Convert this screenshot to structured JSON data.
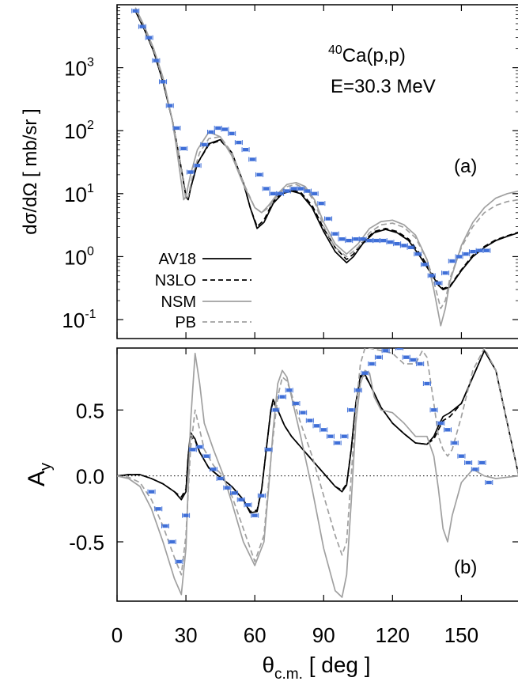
{
  "chart_data": [
    {
      "panel": "(a)",
      "type": "line",
      "yscale": "log",
      "title": "",
      "xlabel": "",
      "ylabel": "dσ/dΩ  [ mb/sr ]",
      "xlim": [
        0,
        175
      ],
      "ylim": [
        0.05,
        10000
      ],
      "yticks": [
        {
          "value": 1000,
          "label": "10",
          "exp": "3"
        },
        {
          "value": 100,
          "label": "10",
          "exp": "2"
        },
        {
          "value": 10,
          "label": "10",
          "exp": "1"
        },
        {
          "value": 1,
          "label": "10",
          "exp": "0"
        },
        {
          "value": 0.1,
          "label": "10",
          "exp": "-1"
        }
      ],
      "annotation": {
        "super": "40",
        "reaction": "Ca(p,p)",
        "energy": "E=30.3 MeV",
        "panel_label": "(a)"
      },
      "legend_placement": "lower-left",
      "series": [
        {
          "name": "AV18",
          "style": "solid",
          "color": "#000000",
          "x": [
            8,
            12,
            16,
            20,
            24,
            27,
            29,
            30,
            31,
            32,
            35,
            40,
            45,
            50,
            55,
            58,
            61,
            64,
            68,
            72,
            76,
            80,
            85,
            90,
            95,
            100,
            103,
            107,
            112,
            117,
            122,
            127,
            132,
            136,
            140,
            142,
            145,
            150,
            155,
            160,
            165,
            170,
            175
          ],
          "y": [
            8000,
            4000,
            1800,
            600,
            150,
            40,
            15,
            9,
            8,
            12,
            30,
            62,
            72,
            45,
            15,
            6,
            2.8,
            3.5,
            7,
            10,
            11,
            10,
            6,
            2.5,
            1.2,
            0.8,
            1.0,
            1.6,
            2.4,
            2.7,
            2.4,
            1.8,
            1.0,
            0.6,
            0.35,
            0.3,
            0.33,
            0.6,
            1.0,
            1.4,
            1.8,
            2.1,
            2.4
          ]
        },
        {
          "name": "N3LO",
          "style": "dashed",
          "color": "#000000",
          "x": [
            8,
            12,
            16,
            20,
            24,
            27,
            29,
            30,
            31,
            32,
            35,
            40,
            45,
            50,
            55,
            58,
            61,
            64,
            68,
            72,
            76,
            80,
            85,
            90,
            95,
            100,
            103,
            107,
            112,
            117,
            122,
            127,
            132,
            136,
            140,
            142,
            145,
            150,
            155,
            160,
            165,
            170,
            175
          ],
          "y": [
            8000,
            4000,
            1800,
            600,
            150,
            40,
            15,
            9,
            8,
            12,
            30,
            60,
            70,
            45,
            15,
            6,
            3.0,
            3.8,
            7.5,
            10.5,
            11.5,
            10.5,
            6.5,
            2.8,
            1.4,
            0.9,
            1.1,
            1.7,
            2.5,
            2.8,
            2.5,
            1.9,
            1.1,
            0.65,
            0.38,
            0.31,
            0.34,
            0.62,
            1.05,
            1.45,
            1.85,
            2.15,
            2.45
          ]
        },
        {
          "name": "NSM",
          "style": "solid",
          "color": "#a0a0a0",
          "x": [
            8,
            12,
            16,
            20,
            24,
            26,
            28,
            29,
            30,
            32,
            35,
            40,
            45,
            50,
            55,
            60,
            63,
            66,
            70,
            74,
            78,
            82,
            86,
            90,
            95,
            100,
            105,
            110,
            115,
            120,
            125,
            130,
            135,
            138,
            141,
            143,
            145,
            150,
            155,
            160,
            165,
            170,
            175
          ],
          "y": [
            9000,
            4500,
            2000,
            700,
            150,
            50,
            15,
            8,
            9,
            20,
            50,
            95,
            80,
            40,
            14,
            6,
            5,
            6.5,
            10,
            14,
            15,
            13,
            8,
            3.5,
            1.6,
            1.1,
            1.6,
            2.8,
            3.6,
            3.8,
            3.2,
            2.2,
            0.9,
            0.3,
            0.08,
            0.15,
            0.4,
            1.5,
            3.5,
            6,
            8.5,
            10,
            11
          ]
        },
        {
          "name": "PB",
          "style": "dashed",
          "color": "#a0a0a0",
          "x": [
            8,
            12,
            16,
            20,
            24,
            27,
            29,
            30,
            31,
            33,
            36,
            40,
            45,
            50,
            55,
            60,
            63,
            66,
            70,
            74,
            78,
            82,
            86,
            90,
            95,
            100,
            105,
            110,
            115,
            120,
            125,
            130,
            135,
            138,
            141,
            143,
            145,
            150,
            155,
            160,
            165,
            170,
            175
          ],
          "y": [
            8500,
            4200,
            1900,
            650,
            150,
            40,
            14,
            8,
            9,
            20,
            45,
            75,
            80,
            45,
            15,
            6,
            5,
            6,
            9.5,
            13,
            14,
            12,
            7.5,
            3,
            1.4,
            1.0,
            1.4,
            2.4,
            3.2,
            3.4,
            2.9,
            2.0,
            0.9,
            0.4,
            0.15,
            0.2,
            0.45,
            1.4,
            3,
            5,
            6.5,
            7.5,
            8
          ]
        },
        {
          "name": "",
          "style": "points",
          "color": "#3f6fd8",
          "x": [
            8,
            11,
            14,
            17,
            20,
            23,
            26,
            29,
            32,
            35,
            38,
            41,
            44,
            47,
            50,
            53,
            56,
            59,
            62,
            65,
            68,
            71,
            74,
            77,
            80,
            83,
            86,
            89,
            92,
            95,
            98,
            101,
            104,
            107,
            110,
            113,
            116,
            119,
            122,
            125,
            128,
            131,
            134,
            137,
            140,
            143,
            146,
            149,
            152,
            155,
            158,
            161
          ],
          "y": [
            8000,
            4500,
            3000,
            1300,
            600,
            250,
            110,
            52,
            22,
            28,
            60,
            95,
            110,
            105,
            90,
            65,
            50,
            35,
            20,
            12,
            10,
            10,
            11,
            12,
            12,
            11,
            10,
            7,
            4,
            2.3,
            1.9,
            1.8,
            1.9,
            1.9,
            1.8,
            1.8,
            1.8,
            1.7,
            1.6,
            1.5,
            1.4,
            1.1,
            0.75,
            0.5,
            0.38,
            0.55,
            0.85,
            1.0,
            1.1,
            1.2,
            1.25,
            1.25
          ]
        }
      ]
    },
    {
      "panel": "(b)",
      "type": "line",
      "title": "",
      "xlabel": "θc.m.  [ deg ]",
      "ylabel": "Ay",
      "xlim": [
        0,
        175
      ],
      "ylim": [
        -0.95,
        0.97
      ],
      "yticks": [
        {
          "value": 0.5,
          "label": "0.5"
        },
        {
          "value": 0.0,
          "label": "0.0"
        },
        {
          "value": -0.5,
          "label": "-0.5"
        }
      ],
      "xticks": [
        {
          "value": 0,
          "label": "0"
        },
        {
          "value": 30,
          "label": "30"
        },
        {
          "value": 60,
          "label": "60"
        },
        {
          "value": 90,
          "label": "90"
        },
        {
          "value": 120,
          "label": "120"
        },
        {
          "value": 150,
          "label": "150"
        }
      ],
      "annotation": {
        "panel_label": "(b)"
      },
      "series": [
        {
          "name": "AV18",
          "style": "solid",
          "color": "#000000",
          "x": [
            0,
            5,
            10,
            15,
            20,
            25,
            28,
            30,
            31,
            32,
            34,
            36,
            40,
            45,
            50,
            55,
            58,
            61,
            63,
            65,
            67,
            68,
            70,
            73,
            76,
            80,
            85,
            90,
            95,
            98,
            100,
            102,
            104,
            106,
            108,
            110,
            115,
            120,
            125,
            130,
            135,
            138,
            140,
            142,
            145,
            150,
            155,
            160,
            165,
            170,
            175
          ],
          "y": [
            0,
            0.01,
            0.01,
            -0.02,
            -0.06,
            -0.12,
            -0.18,
            -0.12,
            0.15,
            0.33,
            0.28,
            0.18,
            0.06,
            -0.01,
            -0.08,
            -0.18,
            -0.28,
            -0.27,
            -0.1,
            0.2,
            0.5,
            0.58,
            0.5,
            0.38,
            0.3,
            0.22,
            0.12,
            0.02,
            -0.08,
            -0.12,
            -0.07,
            0.2,
            0.55,
            0.76,
            0.77,
            0.7,
            0.52,
            0.4,
            0.32,
            0.25,
            0.24,
            0.3,
            0.38,
            0.45,
            0.48,
            0.55,
            0.75,
            0.95,
            0.8,
            0.4,
            0.0
          ]
        },
        {
          "name": "N3LO",
          "style": "dashed",
          "color": "#000000",
          "x": [
            0,
            5,
            10,
            15,
            20,
            25,
            28,
            30,
            31,
            32,
            34,
            36,
            40,
            45,
            50,
            55,
            58,
            61,
            63,
            65,
            67,
            68,
            70,
            73,
            76,
            80,
            85,
            90,
            95,
            98,
            100,
            102,
            104,
            106,
            108,
            110,
            115,
            120,
            125,
            130,
            135,
            138,
            140,
            142,
            145,
            150,
            155,
            160,
            165,
            170,
            175
          ],
          "y": [
            0,
            0.01,
            0.01,
            -0.02,
            -0.06,
            -0.12,
            -0.16,
            -0.1,
            0.15,
            0.3,
            0.27,
            0.18,
            0.06,
            -0.01,
            -0.08,
            -0.18,
            -0.27,
            -0.26,
            -0.1,
            0.2,
            0.5,
            0.56,
            0.5,
            0.38,
            0.3,
            0.22,
            0.12,
            0.02,
            -0.08,
            -0.11,
            -0.06,
            0.2,
            0.55,
            0.75,
            0.76,
            0.7,
            0.52,
            0.4,
            0.32,
            0.25,
            0.24,
            0.28,
            0.35,
            0.42,
            0.45,
            0.55,
            0.75,
            0.95,
            0.8,
            0.4,
            0.0
          ]
        },
        {
          "name": "NSM",
          "style": "solid",
          "color": "#a0a0a0",
          "x": [
            0,
            5,
            10,
            15,
            20,
            25,
            28,
            30,
            32,
            34,
            36,
            38,
            42,
            46,
            50,
            55,
            60,
            64,
            66,
            68,
            70,
            72,
            74,
            76,
            80,
            85,
            90,
            95,
            98,
            100,
            102,
            104,
            106,
            108,
            110,
            112,
            115,
            120,
            125,
            130,
            133,
            135,
            138,
            140,
            142,
            144,
            146,
            150,
            155,
            160,
            165,
            170,
            175
          ],
          "y": [
            0,
            -0.02,
            -0.08,
            -0.25,
            -0.5,
            -0.78,
            -0.9,
            -0.55,
            0.4,
            0.93,
            0.7,
            0.4,
            0.2,
            0.02,
            -0.2,
            -0.5,
            -0.68,
            -0.5,
            -0.1,
            0.35,
            0.7,
            0.8,
            0.75,
            0.6,
            0.3,
            -0.1,
            -0.55,
            -0.87,
            -0.92,
            -0.75,
            -0.2,
            0.4,
            0.7,
            0.8,
            0.78,
            0.6,
            0.5,
            0.48,
            0.4,
            0.3,
            0.3,
            0.3,
            0.15,
            -0.1,
            -0.4,
            -0.5,
            -0.3,
            -0.05,
            0.05,
            0.0,
            -0.02,
            -0.01,
            0.0
          ]
        },
        {
          "name": "PB",
          "style": "dashed",
          "color": "#a0a0a0",
          "x": [
            0,
            5,
            10,
            15,
            20,
            25,
            28,
            30,
            32,
            34,
            36,
            38,
            42,
            46,
            50,
            55,
            60,
            64,
            66,
            68,
            70,
            72,
            74,
            76,
            80,
            85,
            90,
            95,
            98,
            100,
            102,
            104,
            106,
            108,
            110,
            115,
            120,
            125,
            130,
            133,
            135,
            138,
            140,
            142,
            144,
            146,
            150,
            155,
            160,
            165,
            170,
            175
          ],
          "y": [
            0,
            -0.01,
            -0.05,
            -0.18,
            -0.38,
            -0.62,
            -0.75,
            -0.45,
            0.2,
            0.5,
            0.35,
            0.2,
            0.08,
            0.0,
            -0.15,
            -0.4,
            -0.65,
            -0.45,
            -0.05,
            0.3,
            0.6,
            0.75,
            0.72,
            0.62,
            0.4,
            0.15,
            -0.15,
            -0.45,
            -0.6,
            -0.5,
            0.0,
            0.5,
            0.85,
            0.97,
            0.97,
            0.95,
            0.93,
            0.85,
            0.85,
            0.95,
            0.9,
            0.55,
            0.3,
            0.2,
            0.15,
            0.2,
            0.45,
            0.8,
            0.97,
            0.8,
            0.4,
            0.0
          ]
        },
        {
          "name": "",
          "style": "points",
          "color": "#3f6fd8",
          "x": [
            15,
            18,
            21,
            24,
            27,
            30,
            33,
            36,
            39,
            42,
            45,
            48,
            51,
            54,
            57,
            60,
            63,
            66,
            69,
            72,
            75,
            78,
            81,
            84,
            87,
            90,
            93,
            96,
            99,
            102,
            105,
            108,
            111,
            114,
            117,
            120,
            123,
            126,
            129,
            132,
            135,
            138,
            141,
            144,
            147,
            150,
            153,
            156,
            159,
            162
          ],
          "y": [
            -0.12,
            -0.25,
            -0.38,
            -0.5,
            -0.65,
            -0.3,
            0.2,
            0.22,
            0.15,
            0.05,
            -0.02,
            -0.09,
            -0.13,
            -0.18,
            -0.22,
            -0.3,
            -0.15,
            0.2,
            0.5,
            0.6,
            0.65,
            0.55,
            0.48,
            0.42,
            0.38,
            0.35,
            0.3,
            0.25,
            0.3,
            0.5,
            0.65,
            0.78,
            0.85,
            0.9,
            0.95,
            1.0,
            0.97,
            0.9,
            0.88,
            0.85,
            0.7,
            0.5,
            0.4,
            0.35,
            0.25,
            0.15,
            0.1,
            0.05,
            0.1,
            -0.05
          ]
        }
      ]
    }
  ]
}
